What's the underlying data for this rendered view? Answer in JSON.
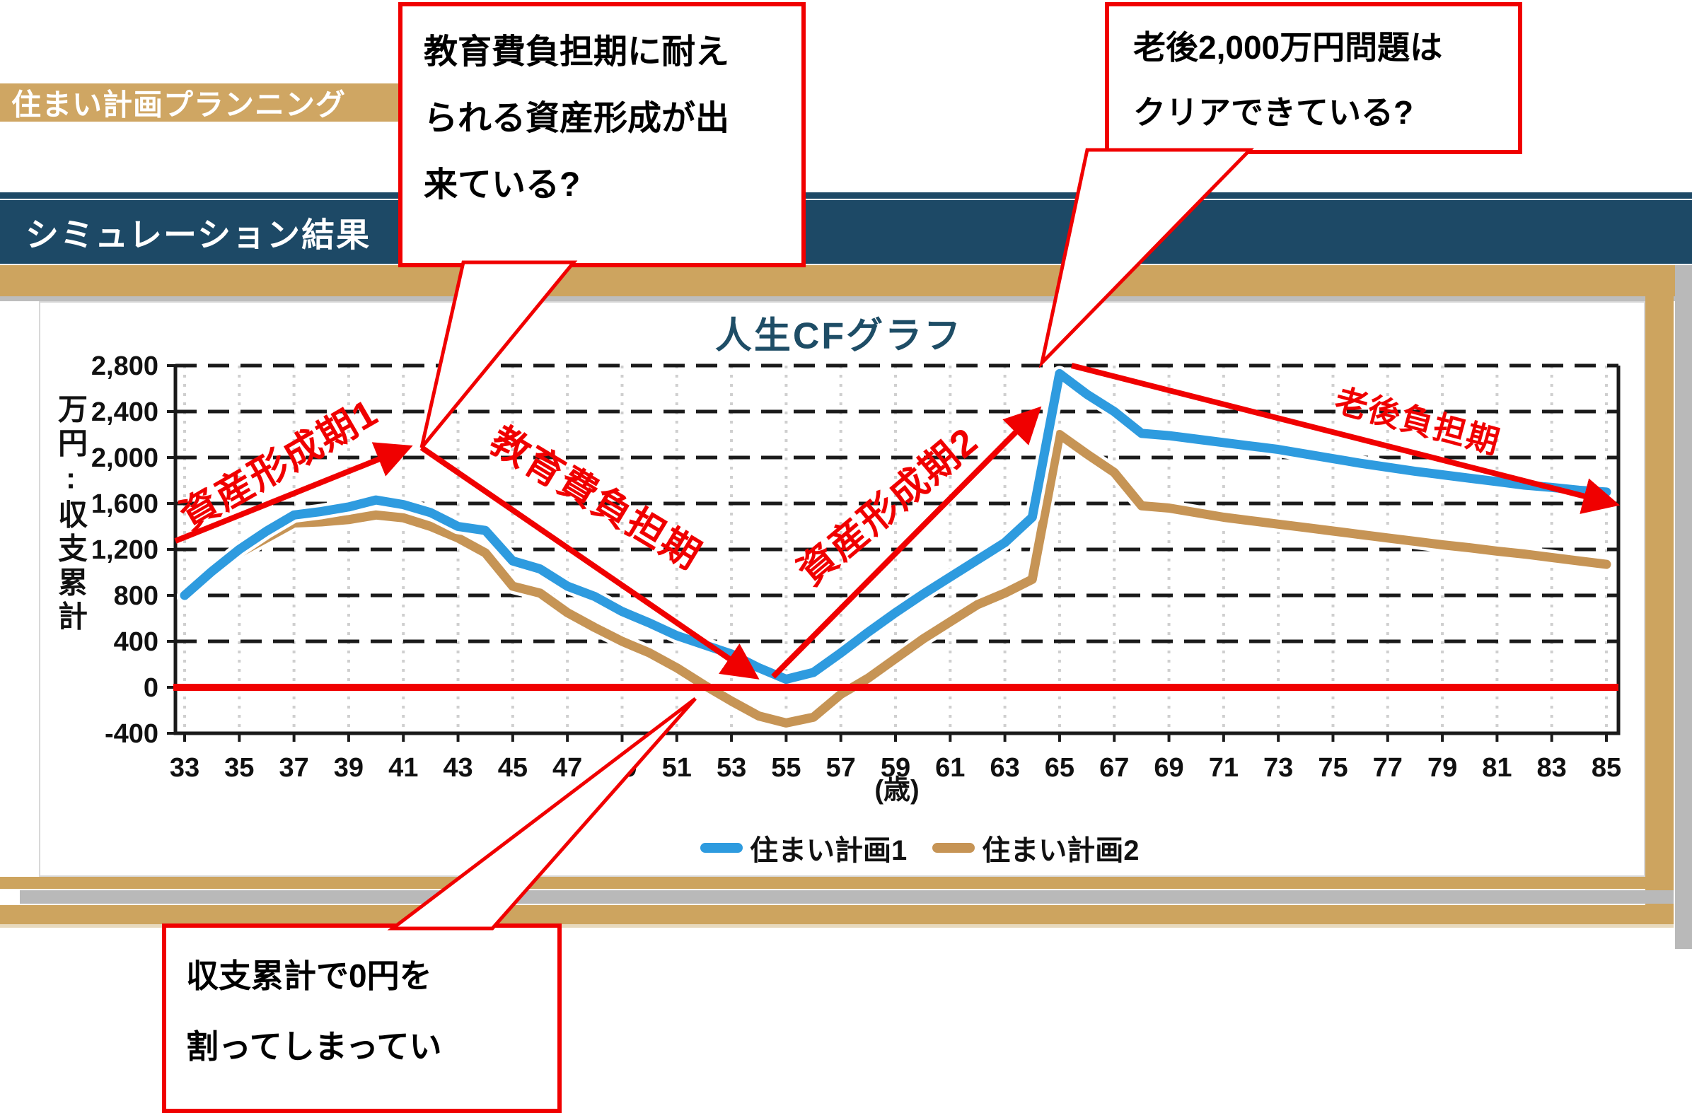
{
  "header": {
    "strip_label": "住まい計画プランニング",
    "banner_label": "シミュレーション結果"
  },
  "chart_data": {
    "type": "line",
    "title": "人生CFグラフ",
    "ylabel": "万円:収支累計",
    "xlabel": "(歳)",
    "ylim": [
      -400,
      2800
    ],
    "ytick_step": 400,
    "ytick_labels": [
      "2,800",
      "2,400",
      "2,000",
      "1,600",
      "1,200",
      "800",
      "400",
      "0",
      "-400"
    ],
    "ytick_values": [
      2800,
      2400,
      2000,
      1600,
      1200,
      800,
      400,
      0,
      -400
    ],
    "x_start": 33,
    "x_end": 85,
    "xtick_labels": [
      "33",
      "35",
      "37",
      "39",
      "41",
      "43",
      "45",
      "47",
      "49",
      "51",
      "53",
      "55",
      "57",
      "59",
      "61",
      "63",
      "65",
      "67",
      "69",
      "71",
      "73",
      "75",
      "77",
      "79",
      "81",
      "83",
      "85"
    ],
    "grid": "horizontal dashed black, vertical dotted gray",
    "legend_position": "bottom center",
    "zero_line_color": "#f00000",
    "series": [
      {
        "name": "住まい計画1",
        "color": "#2e9bdf",
        "ages": [
          33,
          34,
          35,
          36,
          37,
          38,
          39,
          40,
          41,
          42,
          43,
          44,
          45,
          46,
          47,
          48,
          49,
          50,
          51,
          52,
          53,
          54,
          55,
          56,
          57,
          58,
          59,
          60,
          61,
          62,
          63,
          64,
          65,
          66,
          67,
          68,
          69,
          70,
          71,
          72,
          73,
          74,
          75,
          76,
          77,
          78,
          79,
          80,
          81,
          82,
          83,
          84,
          85
        ],
        "values": [
          800,
          1010,
          1200,
          1360,
          1500,
          1530,
          1570,
          1630,
          1590,
          1520,
          1400,
          1365,
          1100,
          1030,
          880,
          790,
          660,
          560,
          450,
          370,
          290,
          170,
          70,
          130,
          300,
          480,
          650,
          810,
          960,
          1110,
          1260,
          1480,
          2730,
          2550,
          2400,
          2210,
          2190,
          2160,
          2130,
          2100,
          2070,
          2030,
          1990,
          1950,
          1915,
          1880,
          1850,
          1820,
          1790,
          1760,
          1740,
          1715,
          1700
        ]
      },
      {
        "name": "住まい計画2",
        "color": "#c69455",
        "ages": [
          33,
          34,
          35,
          36,
          37,
          38,
          39,
          40,
          41,
          42,
          43,
          44,
          45,
          46,
          47,
          48,
          49,
          50,
          51,
          52,
          53,
          54,
          55,
          56,
          57,
          58,
          59,
          60,
          61,
          62,
          63,
          64,
          65,
          66,
          67,
          68,
          69,
          70,
          71,
          72,
          73,
          74,
          75,
          76,
          77,
          78,
          79,
          80,
          81,
          82,
          83,
          84,
          85
        ],
        "values": [
          780,
          990,
          1170,
          1300,
          1430,
          1440,
          1460,
          1500,
          1475,
          1400,
          1300,
          1170,
          880,
          820,
          650,
          520,
          400,
          300,
          170,
          20,
          -120,
          -250,
          -310,
          -260,
          -60,
          80,
          250,
          420,
          570,
          720,
          820,
          940,
          2200,
          2030,
          1870,
          1580,
          1560,
          1520,
          1480,
          1450,
          1420,
          1390,
          1360,
          1330,
          1300,
          1270,
          1240,
          1215,
          1185,
          1160,
          1130,
          1100,
          1070
        ]
      }
    ]
  },
  "annotations": {
    "callout_top_left": {
      "lines": [
        "教育費負担期に耐え",
        "られる資産形成が出",
        "来ている?"
      ]
    },
    "callout_top_right": {
      "lines": [
        "老後2,000万円問題は",
        "クリアできている?"
      ]
    },
    "callout_bottom": {
      "lines": [
        "収支累計で0円を",
        "割ってしまってい"
      ]
    },
    "phase_labels": [
      {
        "text": "資産形成期1"
      },
      {
        "text": "教育費負担期"
      },
      {
        "text": "資産形成期2"
      },
      {
        "text": "老後負担期"
      }
    ],
    "accent_color": "#f00000"
  }
}
